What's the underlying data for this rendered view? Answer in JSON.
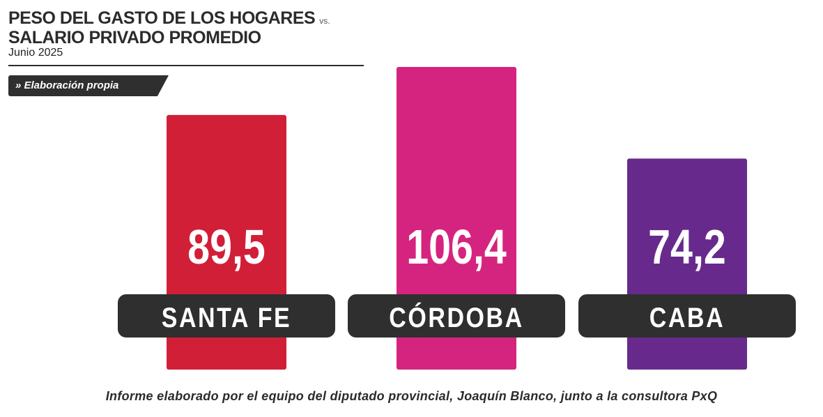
{
  "header": {
    "title_line1": "PESO DEL GASTO DE LOS HOGARES",
    "vs": "vs.",
    "title_line2": "SALARIO PRIVADO PROMEDIO",
    "date": "Junio 2025"
  },
  "source_tag": "» Elaboración propia",
  "footnote": "Informe elaborado por el equipo del diputado provincial, Joaquín Blanco, junto a la consultora PxQ",
  "chart_data": {
    "type": "bar",
    "categories": [
      "SANTA FE",
      "CÓRDOBA",
      "CABA"
    ],
    "values": [
      89.5,
      106.4,
      74.2
    ],
    "value_labels": [
      "89,5",
      "106,4",
      "74,2"
    ],
    "colors": [
      "#d11f38",
      "#d5247f",
      "#672a8c"
    ],
    "label_pill_color": "#2f2f2f",
    "ylim": [
      0,
      106.4
    ],
    "grid": false,
    "legend": "none"
  }
}
